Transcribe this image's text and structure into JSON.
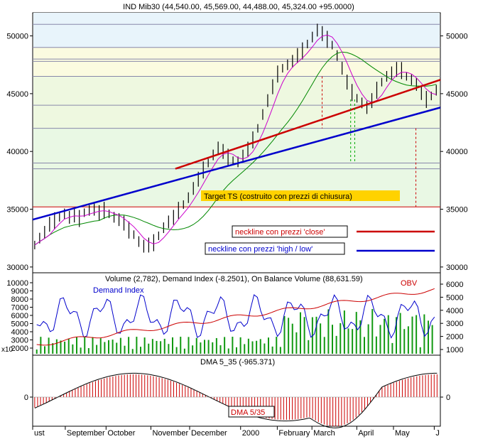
{
  "chart_data": {
    "type": "line",
    "title": "IND Mib30 (44,540.00, 45,569.00, 44,488.00, 45,324.00 +95.0000)",
    "x_months": [
      "ust",
      "September",
      "October",
      "November",
      "December",
      "2000",
      "February",
      "March",
      "April",
      "May",
      "J"
    ],
    "price_panel": {
      "y_ticks": [
        50000,
        45000,
        40000,
        35000,
        30000
      ],
      "ylim": [
        29500,
        52000
      ],
      "annotation_target": "Target  TS (costruito con  prezzi di chiusura)",
      "legend_close": "neckline con prezzi 'close'",
      "legend_highlow": "neckline con prezzi 'high / low'",
      "colors": {
        "close_neckline": "#cc0000",
        "highlow_neckline": "#0000cc",
        "price": "#000000",
        "ma_short": "#cc00cc",
        "ma_long": "#008800"
      },
      "horizontal_levels": [
        51000,
        49000,
        48000,
        47800,
        46500,
        44000,
        42000,
        39000,
        38500,
        35200
      ],
      "neckline_close": [
        [
          0.35,
          38500
        ],
        [
          1.0,
          46200
        ]
      ],
      "neckline_highlow": [
        [
          0.0,
          34100
        ],
        [
          1.0,
          43800
        ]
      ],
      "series": [
        {
          "name": "close",
          "values": [
            31900,
            32500,
            33000,
            33700,
            34000,
            34300,
            34600,
            34300,
            34500,
            34200,
            34700,
            34900,
            35000,
            34700,
            34900,
            34600,
            34300,
            34100,
            33800,
            33200,
            32800,
            32200,
            31800,
            31900,
            32100,
            32700,
            33400,
            33900,
            34300,
            34900,
            35400,
            36000,
            36800,
            37600,
            38400,
            39000,
            39700,
            40300,
            40000,
            39500,
            39200,
            39100,
            39600,
            40200,
            41000,
            42000,
            43200,
            44400,
            45600,
            46700,
            47200,
            47500,
            47800,
            48300,
            48700,
            49300,
            49900,
            50500,
            50200,
            49700,
            49200,
            48300,
            47200,
            46000,
            45100,
            44600,
            44200,
            43800,
            44400,
            45300,
            46000,
            46500,
            46800,
            47100,
            47000,
            46500,
            46200,
            45800,
            45100,
            44500,
            44800,
            45300
          ]
        }
      ]
    },
    "indicator_panel": {
      "title": "Volume (2,782), Demand Index (-8.2501), On Balance Volume (88,631.59)",
      "label_demand": "Demand Index",
      "label_obv": "OBV",
      "y_ticks_left": [
        10000,
        9000,
        8000,
        7000,
        6000,
        5000,
        4000,
        3000,
        2000
      ],
      "y_ticks_right": [
        6000,
        5000,
        4000,
        3000,
        2000,
        1000
      ],
      "axis_multiplier": "x10"
    },
    "dma_panel": {
      "title": "DMA 5_35 (-965.371)",
      "label": "DMA 5/35",
      "y_ticks": [
        0
      ]
    }
  }
}
